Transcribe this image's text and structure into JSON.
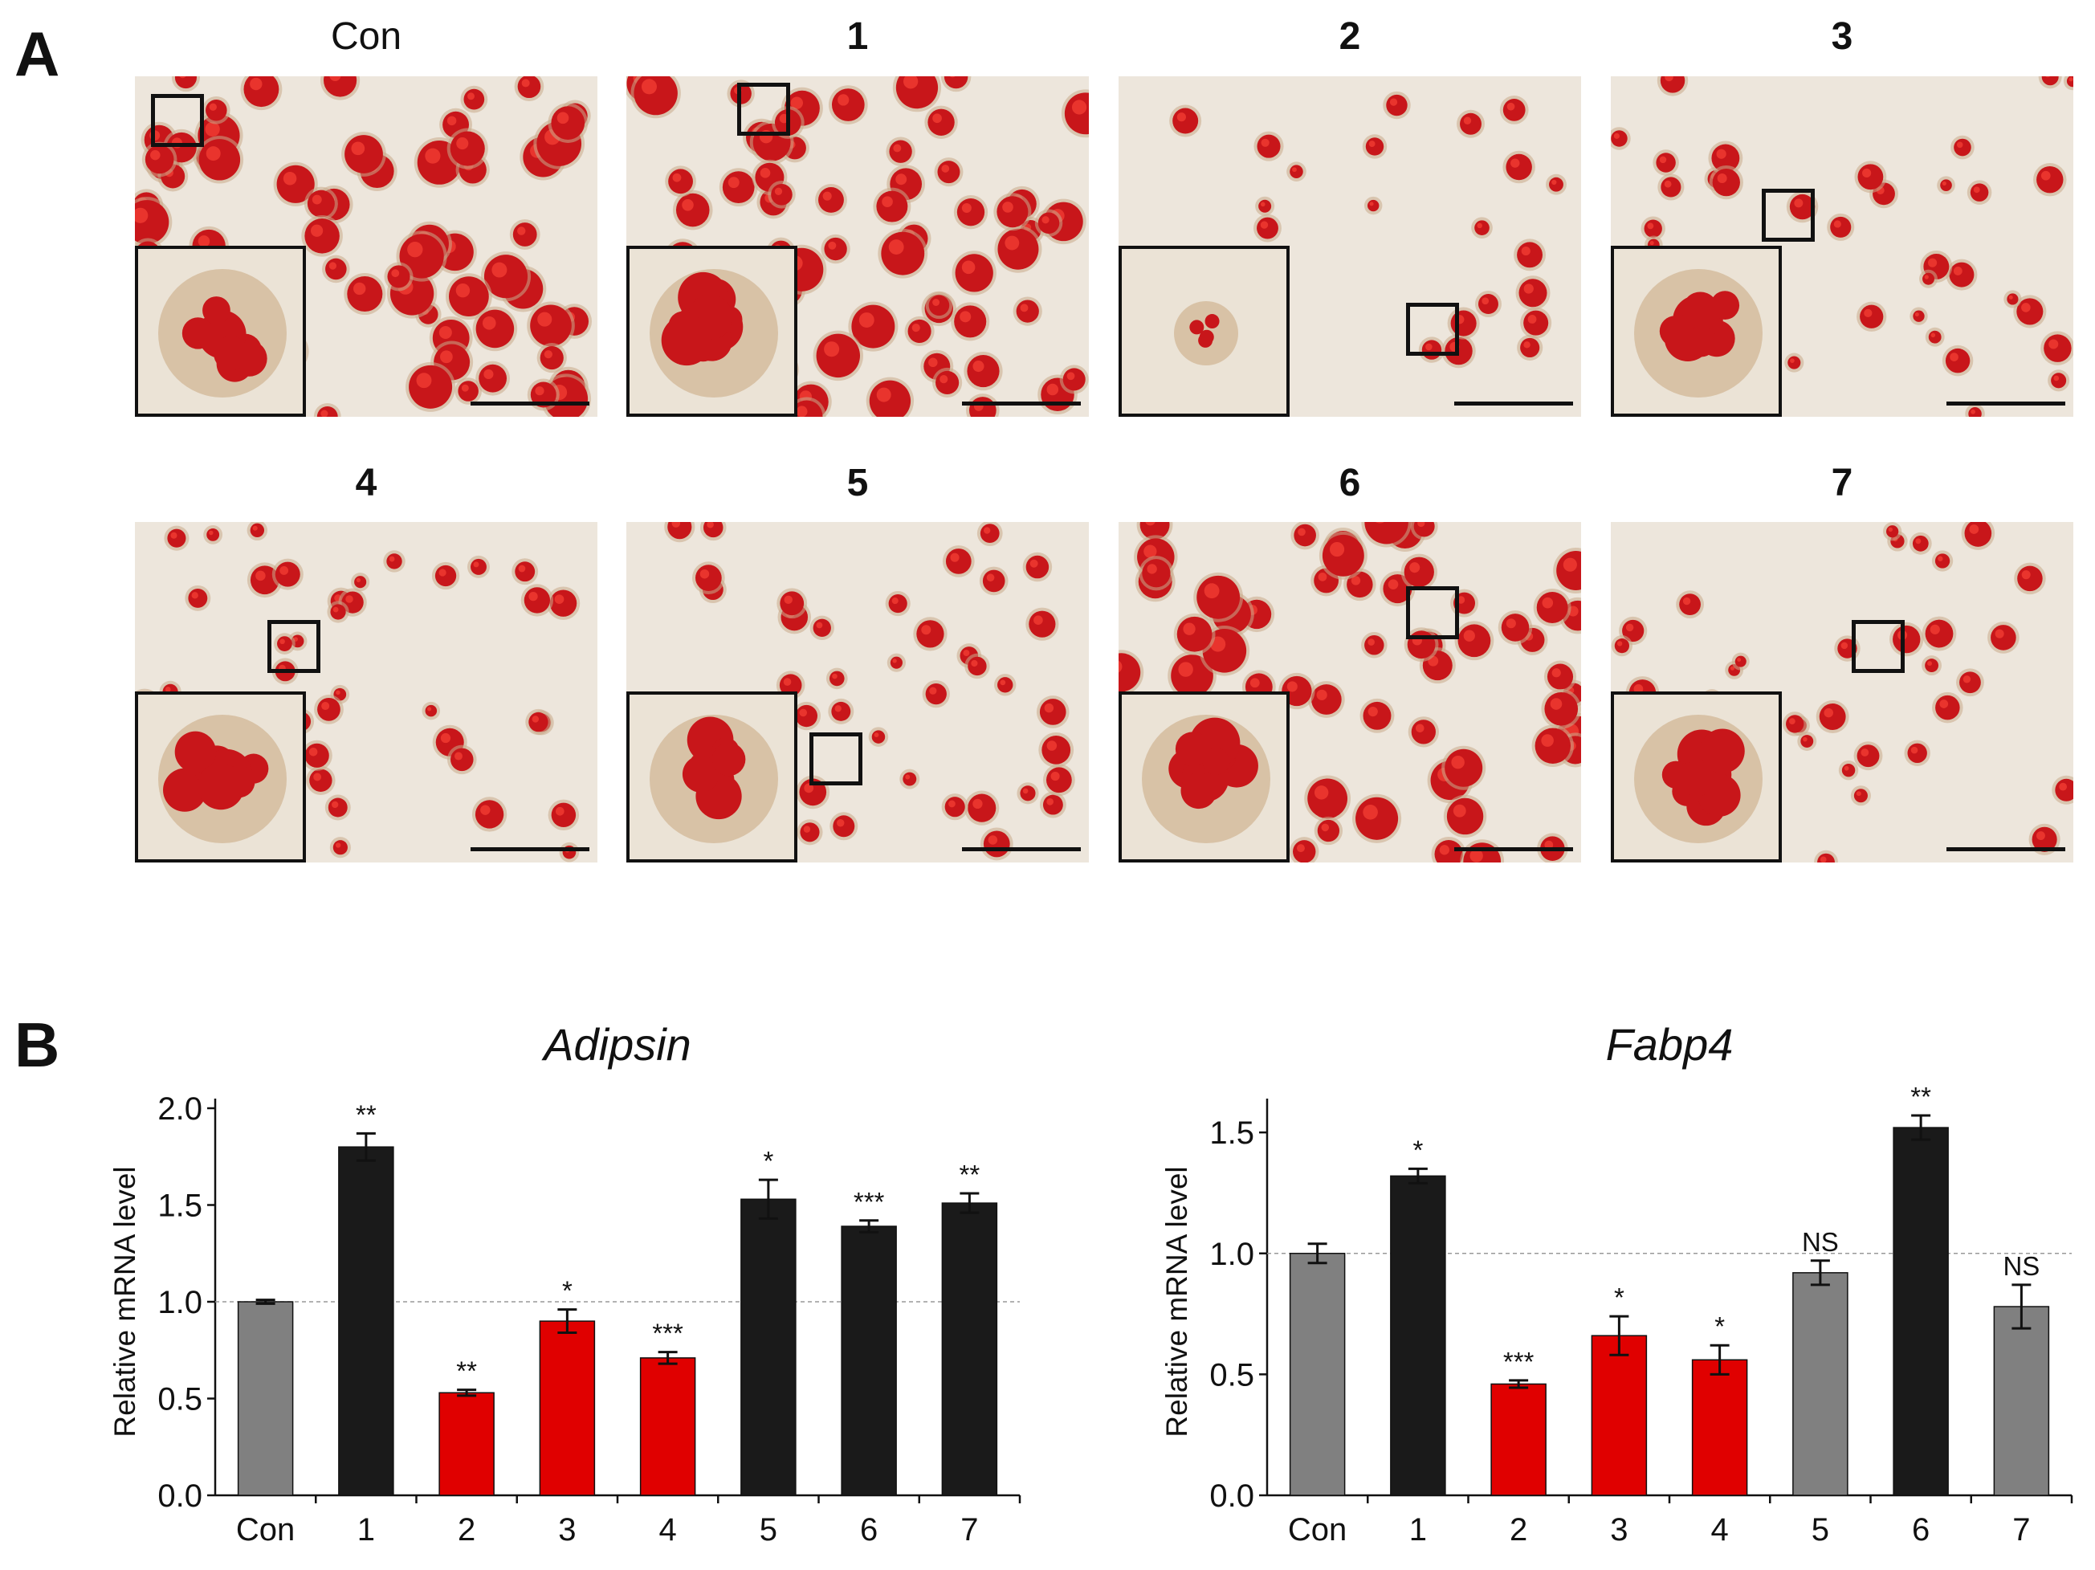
{
  "panel_a": {
    "letter": "A",
    "images": [
      {
        "label": "Con",
        "bold": false,
        "density": "high",
        "roi_icon": "roi-box-icon",
        "zoom_icon": "zoom-inset-icon"
      },
      {
        "label": "1",
        "bold": true,
        "density": "high"
      },
      {
        "label": "2",
        "bold": true,
        "density": "low"
      },
      {
        "label": "3",
        "bold": true,
        "density": "medium"
      },
      {
        "label": "4",
        "bold": true,
        "density": "medium"
      },
      {
        "label": "5",
        "bold": true,
        "density": "medium"
      },
      {
        "label": "6",
        "bold": true,
        "density": "high"
      },
      {
        "label": "7",
        "bold": true,
        "density": "medium"
      }
    ],
    "colors": {
      "stain": "#c8161a",
      "background": "#ede6dc",
      "frame": "#111111"
    }
  },
  "panel_b": {
    "letter": "B"
  },
  "chart_data": [
    {
      "type": "bar",
      "title": "Adipsin",
      "xlabel": "",
      "ylabel": "Relative mRNA level",
      "categories": [
        "Con",
        "1",
        "2",
        "3",
        "4",
        "5",
        "6",
        "7"
      ],
      "values": [
        1.0,
        1.8,
        0.53,
        0.9,
        0.71,
        1.53,
        1.39,
        1.51
      ],
      "errors": [
        0.01,
        0.07,
        0.015,
        0.06,
        0.03,
        0.1,
        0.03,
        0.05
      ],
      "significance": [
        "",
        "**",
        "**",
        "*",
        "***",
        "*",
        "***",
        "**"
      ],
      "bar_colors": [
        "#808080",
        "#1a1a1a",
        "#e00000",
        "#e00000",
        "#e00000",
        "#1a1a1a",
        "#1a1a1a",
        "#1a1a1a"
      ],
      "ylim": [
        0.0,
        2.0
      ],
      "yticks": [
        "0.0",
        "0.5",
        "1.0",
        "1.5",
        "2.0"
      ],
      "reference_line": 1.0,
      "grid": false
    },
    {
      "type": "bar",
      "title": "Fabp4",
      "xlabel": "",
      "ylabel": "Relative mRNA level",
      "categories": [
        "Con",
        "1",
        "2",
        "3",
        "4",
        "5",
        "6",
        "7"
      ],
      "values": [
        1.0,
        1.32,
        0.46,
        0.66,
        0.56,
        0.92,
        1.52,
        0.78
      ],
      "errors": [
        0.04,
        0.03,
        0.015,
        0.08,
        0.06,
        0.05,
        0.05,
        0.09
      ],
      "significance": [
        "",
        "*",
        "***",
        "*",
        "*",
        "NS",
        "**",
        "NS"
      ],
      "bar_colors": [
        "#808080",
        "#1a1a1a",
        "#e00000",
        "#e00000",
        "#e00000",
        "#808080",
        "#1a1a1a",
        "#808080"
      ],
      "ylim": [
        0.0,
        1.6
      ],
      "yticks": [
        "0.0",
        "0.5",
        "1.0",
        "1.5"
      ],
      "reference_line": 1.0,
      "grid": false
    }
  ]
}
